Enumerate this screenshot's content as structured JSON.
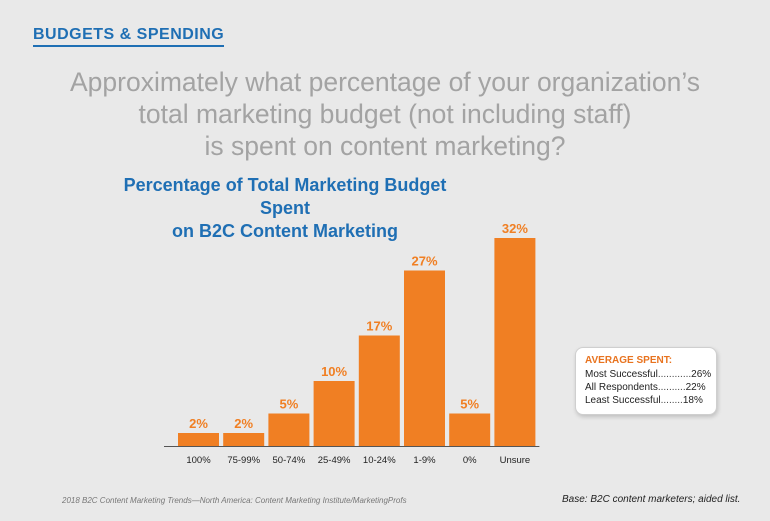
{
  "section_tag": "BUDGETS & SPENDING",
  "question_lines": [
    "Approximately what percentage of your organization’s",
    "total marketing budget (not including staff)",
    "is spent on content marketing?"
  ],
  "colors": {
    "bar": "#f07f23",
    "label": "#f07f23",
    "title": "#1f6fb4",
    "axis": "#555555"
  },
  "chart_data": {
    "type": "bar",
    "title_lines": [
      "Percentage of Total Marketing Budget Spent",
      "on B2C Content Marketing"
    ],
    "categories": [
      "100%",
      "75-99%",
      "50-74%",
      "25-49%",
      "10-24%",
      "1-9%",
      "0%",
      "Unsure"
    ],
    "values": [
      2,
      2,
      5,
      10,
      17,
      27,
      5,
      32
    ],
    "value_labels": [
      "2%",
      "2%",
      "5%",
      "10%",
      "17%",
      "27%",
      "5%",
      "32%"
    ],
    "ylim": [
      0,
      32
    ],
    "grid": false,
    "legend": "none"
  },
  "average_box": {
    "heading": "AVERAGE SPENT:",
    "rows": [
      {
        "label": "Most Successful",
        "dots": "............",
        "value": "26%"
      },
      {
        "label": "All Respondents",
        "dots": "..........",
        "value": "22%"
      },
      {
        "label": "Least Successful",
        "dots": "........",
        "value": "18%"
      }
    ]
  },
  "footer": {
    "source": "2018 B2C Content Marketing Trends—North America: Content Marketing Institute/MarketingProfs",
    "base": "Base: B2C content marketers; aided list."
  }
}
